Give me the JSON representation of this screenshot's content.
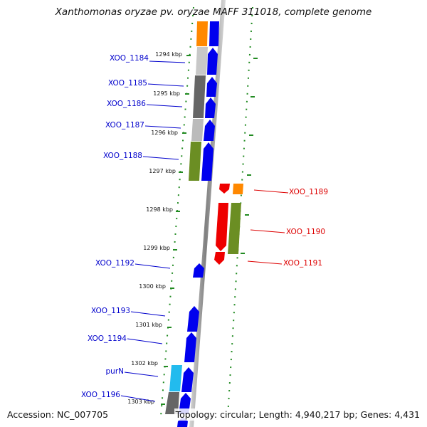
{
  "title": "Xanthomonas oryzae pv. oryzae MAFF 311018, complete genome",
  "footer": {
    "accession": "Accession: NC_007705",
    "topology": "Topology: circular; Length: 4,940,217 bp; Genes: 4,431"
  },
  "colors": {
    "forward_label": "#0000cc",
    "reverse_label": "#dd0000",
    "forward_gene": "#0000ee",
    "reverse_gene": "#ee0000",
    "orange_track": "#ff8800",
    "green_track": "#6b8e23",
    "gray_track": "#888888",
    "cyan_track": "#22bbee",
    "ticks": "#228b22"
  },
  "kbp_labels": [
    "1294 kbp",
    "1295 kbp",
    "1296 kbp",
    "1297 kbp",
    "1298 kbp",
    "1299 kbp",
    "1300 kbp",
    "1301 kbp",
    "1302 kbp",
    "1303 kbp"
  ],
  "genes_forward": [
    {
      "label": "XOO_1184"
    },
    {
      "label": "XOO_1185"
    },
    {
      "label": "XOO_1186"
    },
    {
      "label": "XOO_1187"
    },
    {
      "label": "XOO_1188"
    },
    {
      "label": "XOO_1192"
    },
    {
      "label": "XOO_1193"
    },
    {
      "label": "XOO_1194"
    },
    {
      "label": "purN"
    },
    {
      "label": "XOO_1196"
    }
  ],
  "genes_reverse": [
    {
      "label": "XOO_1189"
    },
    {
      "label": "XOO_1190"
    },
    {
      "label": "XOO_1191"
    }
  ]
}
